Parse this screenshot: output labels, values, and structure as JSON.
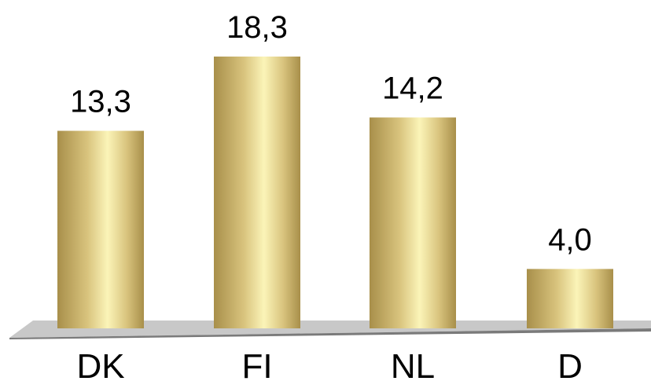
{
  "chart_data": {
    "type": "bar",
    "categories": [
      "DK",
      "FI",
      "NL",
      "D"
    ],
    "values": [
      13.3,
      18.3,
      14.2,
      4.0
    ],
    "data_labels": [
      "13,3",
      "18,3",
      "14,2",
      "4,0"
    ],
    "title": "",
    "xlabel": "",
    "ylabel": "",
    "ylim": [
      0,
      18.3
    ],
    "grid": false,
    "legend": "none",
    "style": "3d-cylinder",
    "colors": {
      "bar_dark": "#a88f4a",
      "bar_mid": "#d9c47e",
      "bar_light": "#fbf4b8",
      "floor_top": "#c8c8c8",
      "floor_edge": "#7a7a7a"
    }
  }
}
